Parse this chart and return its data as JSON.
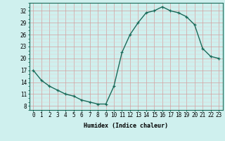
{
  "x": [
    0,
    1,
    2,
    3,
    4,
    5,
    6,
    7,
    8,
    9,
    10,
    11,
    12,
    13,
    14,
    15,
    16,
    17,
    18,
    19,
    20,
    21,
    22,
    23
  ],
  "y": [
    17,
    14.5,
    13,
    12,
    11,
    10.5,
    9.5,
    9,
    8.5,
    8.5,
    13,
    21.5,
    26,
    29,
    31.5,
    32,
    33,
    32,
    31.5,
    30.5,
    28.5,
    22.5,
    20.5,
    20
  ],
  "line_color": "#1a6b5a",
  "marker": "+",
  "bg_color": "#cff0ee",
  "xlabel": "Humidex (Indice chaleur)",
  "yticks": [
    8,
    11,
    14,
    17,
    20,
    23,
    26,
    29,
    32
  ],
  "xticks": [
    0,
    1,
    2,
    3,
    4,
    5,
    6,
    7,
    8,
    9,
    10,
    11,
    12,
    13,
    14,
    15,
    16,
    17,
    18,
    19,
    20,
    21,
    22,
    23
  ],
  "xlim": [
    -0.5,
    23.5
  ],
  "ylim": [
    7,
    34
  ],
  "xlabel_fontsize": 6,
  "tick_fontsize": 5.5,
  "line_width": 1.0,
  "marker_size": 3.5
}
